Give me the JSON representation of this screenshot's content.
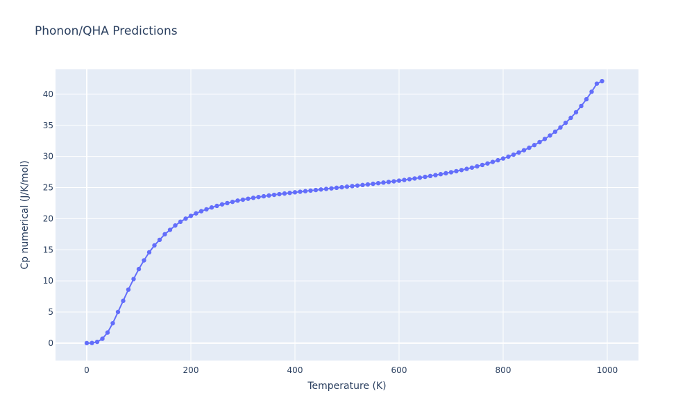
{
  "chart_data": {
    "type": "line",
    "title": "Phonon/QHA Predictions",
    "xlabel": "Temperature (K)",
    "ylabel": "Cp numerical (J/K/mol)",
    "xlim": [
      -60,
      1060
    ],
    "ylim": [
      -2.8,
      44
    ],
    "x_ticks": [
      0,
      200,
      400,
      600,
      800,
      1000
    ],
    "x_tick_labels": [
      "0",
      "200",
      "400",
      "600",
      "800",
      "1000"
    ],
    "y_ticks": [
      0,
      5,
      10,
      15,
      20,
      25,
      30,
      35,
      40
    ],
    "y_tick_labels": [
      "0",
      "5",
      "10",
      "15",
      "20",
      "25",
      "30",
      "35",
      "40"
    ],
    "grid": true,
    "legend": "none",
    "series": [
      {
        "color": "#636efa",
        "mode": "lines+markers",
        "x": [
          0,
          10,
          20,
          30,
          40,
          50,
          60,
          70,
          80,
          90,
          100,
          110,
          120,
          130,
          140,
          150,
          160,
          170,
          180,
          190,
          200,
          210,
          220,
          230,
          240,
          250,
          260,
          270,
          280,
          290,
          300,
          310,
          320,
          330,
          340,
          350,
          360,
          370,
          380,
          390,
          400,
          410,
          420,
          430,
          440,
          450,
          460,
          470,
          480,
          490,
          500,
          510,
          520,
          530,
          540,
          550,
          560,
          570,
          580,
          590,
          600,
          610,
          620,
          630,
          640,
          650,
          660,
          670,
          680,
          690,
          700,
          710,
          720,
          730,
          740,
          750,
          760,
          770,
          780,
          790,
          800,
          810,
          820,
          830,
          840,
          850,
          860,
          870,
          880,
          890,
          900,
          910,
          920,
          930,
          940,
          950,
          960,
          970,
          980,
          990
        ],
        "y": [
          0.0,
          0.02,
          0.2,
          0.7,
          1.7,
          3.2,
          5.0,
          6.8,
          8.6,
          10.3,
          11.9,
          13.3,
          14.6,
          15.7,
          16.6,
          17.5,
          18.2,
          18.9,
          19.5,
          20.0,
          20.45,
          20.85,
          21.2,
          21.5,
          21.8,
          22.05,
          22.3,
          22.5,
          22.7,
          22.9,
          23.05,
          23.2,
          23.35,
          23.48,
          23.6,
          23.72,
          23.83,
          23.94,
          24.04,
          24.14,
          24.24,
          24.33,
          24.42,
          24.51,
          24.6,
          24.69,
          24.78,
          24.87,
          24.96,
          25.05,
          25.14,
          25.23,
          25.32,
          25.41,
          25.5,
          25.6,
          25.7,
          25.8,
          25.9,
          26.0,
          26.11,
          26.22,
          26.34,
          26.46,
          26.59,
          26.72,
          26.86,
          27.0,
          27.15,
          27.3,
          27.46,
          27.63,
          27.81,
          28.0,
          28.2,
          28.41,
          28.63,
          28.87,
          29.12,
          29.39,
          29.67,
          29.97,
          30.29,
          30.63,
          31.0,
          31.4,
          31.83,
          32.3,
          32.81,
          33.37,
          33.98,
          34.66,
          35.4,
          36.2,
          37.1,
          38.1,
          39.2,
          40.4,
          41.7,
          42.1
        ]
      }
    ]
  }
}
